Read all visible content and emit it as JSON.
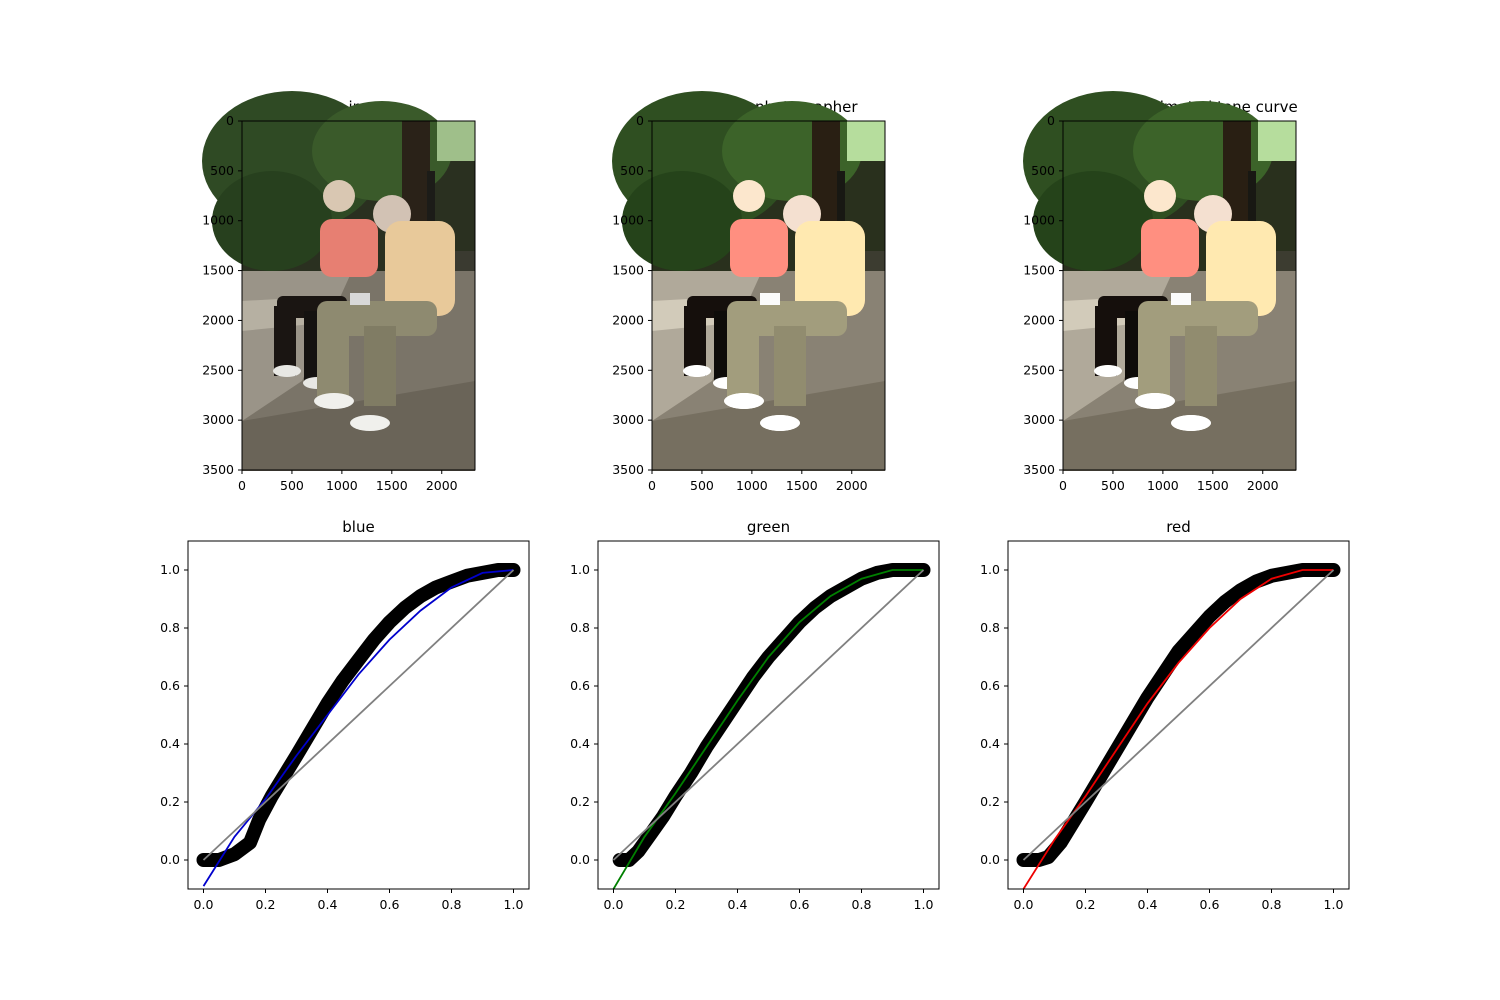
{
  "figure": {
    "image_panels": [
      {
        "title": "src image"
      },
      {
        "title": "edited by photographer"
      },
      {
        "title": "edited by estimated tone curve"
      }
    ],
    "image_axes": {
      "x_ticks": [
        "0",
        "500",
        "1000",
        "1500",
        "2000"
      ],
      "y_ticks": [
        "0",
        "500",
        "1000",
        "1500",
        "2000",
        "2500",
        "3000",
        "3500"
      ]
    }
  },
  "chart_data": [
    {
      "type": "scatter",
      "title": "blue",
      "xlim": [
        -0.05,
        1.05
      ],
      "ylim": [
        -0.1,
        1.1
      ],
      "x_ticks": [
        "0.0",
        "0.2",
        "0.4",
        "0.6",
        "0.8",
        "1.0"
      ],
      "y_ticks": [
        "0.0",
        "0.2",
        "0.4",
        "0.6",
        "0.8",
        "1.0"
      ],
      "grid": false,
      "series": [
        {
          "role": "scatter",
          "color": "#000000",
          "x": [
            0.0,
            0.05,
            0.1,
            0.15,
            0.18,
            0.22,
            0.26,
            0.3,
            0.35,
            0.4,
            0.45,
            0.5,
            0.55,
            0.6,
            0.65,
            0.7,
            0.75,
            0.8,
            0.85,
            0.9,
            0.95,
            1.0
          ],
          "y": [
            0.0,
            0.0,
            0.02,
            0.06,
            0.14,
            0.22,
            0.29,
            0.36,
            0.45,
            0.54,
            0.62,
            0.69,
            0.76,
            0.82,
            0.87,
            0.91,
            0.94,
            0.96,
            0.98,
            0.99,
            1.0,
            1.0
          ]
        },
        {
          "role": "fit",
          "color": "#0000cc",
          "x": [
            0.0,
            0.1,
            0.2,
            0.3,
            0.4,
            0.5,
            0.6,
            0.7,
            0.8,
            0.9,
            1.0
          ],
          "y": [
            -0.09,
            0.08,
            0.21,
            0.36,
            0.5,
            0.64,
            0.76,
            0.86,
            0.94,
            0.99,
            1.0
          ]
        },
        {
          "role": "identity",
          "color": "#808080",
          "x": [
            0.0,
            1.0
          ],
          "y": [
            0.0,
            1.0
          ]
        }
      ]
    },
    {
      "type": "scatter",
      "title": "green",
      "xlim": [
        -0.05,
        1.05
      ],
      "ylim": [
        -0.1,
        1.1
      ],
      "x_ticks": [
        "0.0",
        "0.2",
        "0.4",
        "0.6",
        "0.8",
        "1.0"
      ],
      "y_ticks": [
        "0.0",
        "0.2",
        "0.4",
        "0.6",
        "0.8",
        "1.0"
      ],
      "grid": false,
      "series": [
        {
          "role": "scatter",
          "color": "#000000",
          "x": [
            0.02,
            0.05,
            0.08,
            0.12,
            0.16,
            0.2,
            0.25,
            0.3,
            0.35,
            0.4,
            0.45,
            0.5,
            0.55,
            0.6,
            0.65,
            0.7,
            0.75,
            0.8,
            0.85,
            0.9,
            0.95,
            1.0
          ],
          "y": [
            0.0,
            0.0,
            0.03,
            0.09,
            0.15,
            0.22,
            0.3,
            0.39,
            0.47,
            0.55,
            0.63,
            0.7,
            0.76,
            0.82,
            0.87,
            0.91,
            0.94,
            0.97,
            0.99,
            1.0,
            1.0,
            1.0
          ]
        },
        {
          "role": "fit",
          "color": "#008000",
          "x": [
            0.0,
            0.1,
            0.2,
            0.3,
            0.4,
            0.5,
            0.6,
            0.7,
            0.8,
            0.9,
            1.0
          ],
          "y": [
            -0.1,
            0.08,
            0.23,
            0.39,
            0.55,
            0.7,
            0.82,
            0.91,
            0.97,
            1.0,
            1.0
          ]
        },
        {
          "role": "identity",
          "color": "#808080",
          "x": [
            0.0,
            1.0
          ],
          "y": [
            0.0,
            1.0
          ]
        }
      ]
    },
    {
      "type": "scatter",
      "title": "red",
      "xlim": [
        -0.05,
        1.05
      ],
      "ylim": [
        -0.1,
        1.1
      ],
      "x_ticks": [
        "0.0",
        "0.2",
        "0.4",
        "0.6",
        "0.8",
        "1.0"
      ],
      "y_ticks": [
        "0.0",
        "0.2",
        "0.4",
        "0.6",
        "0.8",
        "1.0"
      ],
      "grid": false,
      "series": [
        {
          "role": "scatter",
          "color": "#000000",
          "x": [
            0.0,
            0.05,
            0.08,
            0.12,
            0.16,
            0.2,
            0.25,
            0.3,
            0.35,
            0.4,
            0.45,
            0.5,
            0.55,
            0.6,
            0.65,
            0.7,
            0.75,
            0.8,
            0.85,
            0.9,
            0.95,
            1.0
          ],
          "y": [
            0.0,
            0.0,
            0.01,
            0.06,
            0.13,
            0.2,
            0.29,
            0.38,
            0.47,
            0.56,
            0.64,
            0.72,
            0.78,
            0.84,
            0.89,
            0.93,
            0.96,
            0.98,
            0.99,
            1.0,
            1.0,
            1.0
          ]
        },
        {
          "role": "fit",
          "color": "#ee0000",
          "x": [
            0.0,
            0.1,
            0.2,
            0.3,
            0.4,
            0.5,
            0.6,
            0.7,
            0.8,
            0.9,
            1.0
          ],
          "y": [
            -0.1,
            0.07,
            0.22,
            0.38,
            0.54,
            0.68,
            0.8,
            0.9,
            0.97,
            1.0,
            1.0
          ]
        },
        {
          "role": "identity",
          "color": "#808080",
          "x": [
            0.0,
            1.0
          ],
          "y": [
            0.0,
            1.0
          ]
        }
      ]
    }
  ]
}
